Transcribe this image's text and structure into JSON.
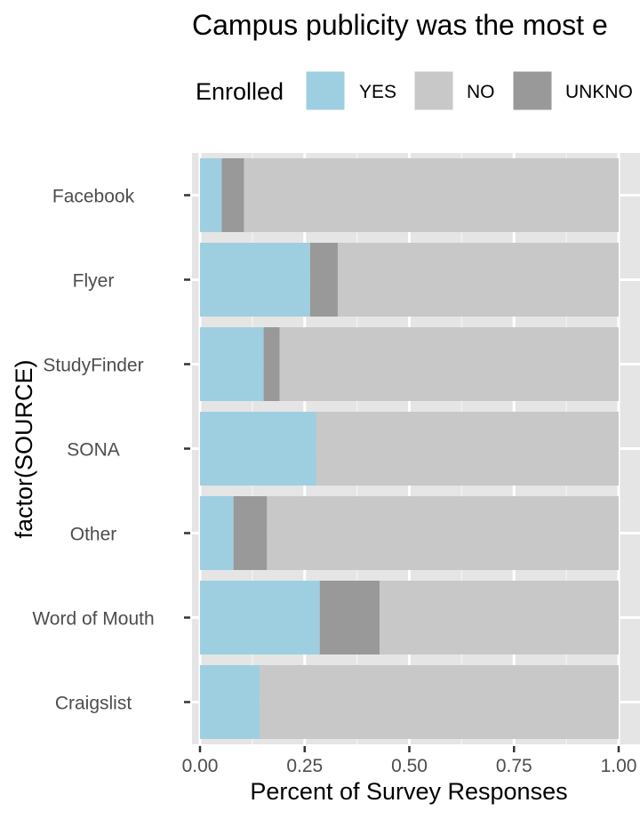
{
  "chart_data": {
    "type": "bar",
    "orientation": "horizontal",
    "stacked": true,
    "title": "Campus publicity was the most e",
    "xlabel": "Percent of Survey Responses",
    "ylabel": "factor(SOURCE)",
    "xlim": [
      0,
      1
    ],
    "xticks": [
      "0.00",
      "0.25",
      "0.50",
      "0.75",
      "1.00"
    ],
    "grid": true,
    "legend": {
      "title": "Enrolled",
      "position": "top",
      "entries": [
        "YES",
        "NO",
        "UNKNO"
      ]
    },
    "categories": [
      "Facebook",
      "Flyer",
      "StudyFinder",
      "SONA",
      "Other",
      "Word of Mouth",
      "Craigslist"
    ],
    "series": [
      {
        "name": "YES",
        "color": "#9ecfe0",
        "values": [
          0.052,
          0.263,
          0.152,
          0.278,
          0.08,
          0.286,
          0.143
        ]
      },
      {
        "name": "UNKNO",
        "color": "#999999",
        "values": [
          0.053,
          0.066,
          0.038,
          0,
          0.08,
          0.143,
          0
        ]
      },
      {
        "name": "NO",
        "color": "#c8c8c8",
        "values": [
          0.895,
          0.671,
          0.81,
          0.722,
          0.84,
          0.571,
          0.857
        ]
      }
    ]
  }
}
